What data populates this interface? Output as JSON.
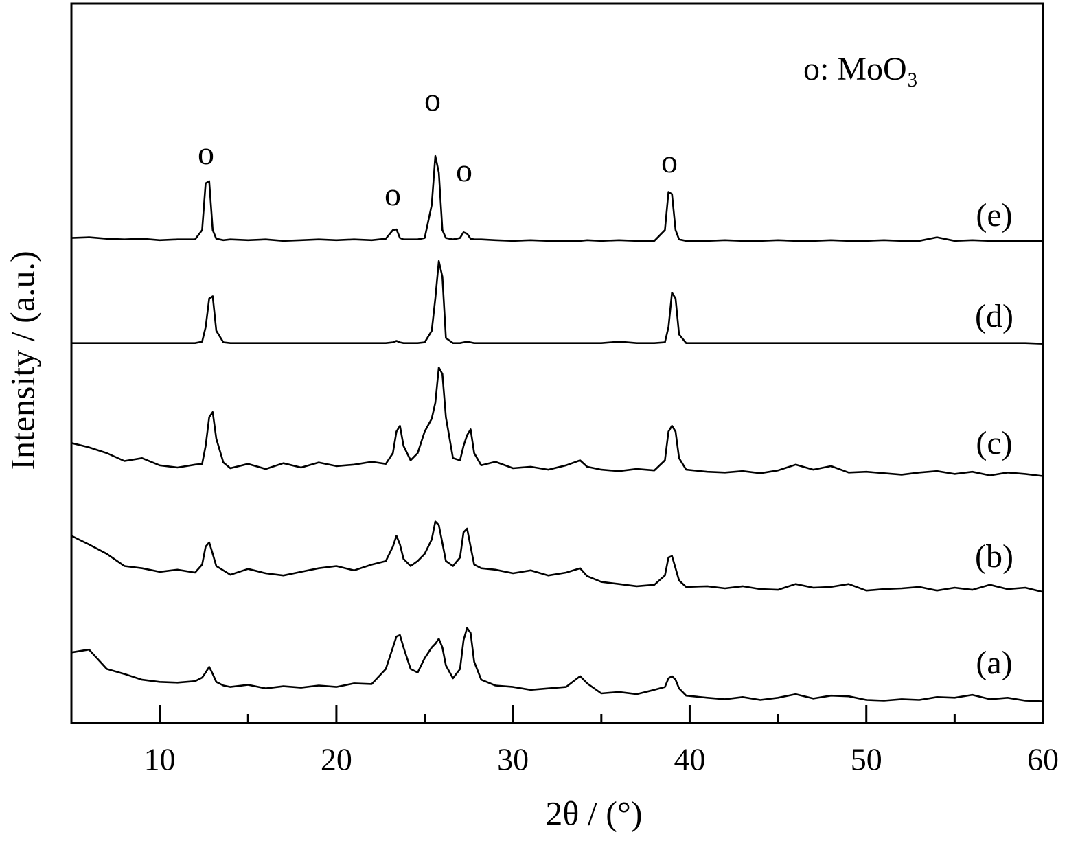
{
  "chart_data": {
    "type": "line",
    "xlabel": "2θ / (°)",
    "ylabel": "Intensity / (a.u.)",
    "legend_note": "o: MoO₃",
    "annotations": [
      "o",
      "o",
      "o",
      "o",
      "o"
    ],
    "xlim": [
      5,
      60
    ],
    "xticks": [
      10,
      20,
      30,
      40,
      50,
      60
    ],
    "xminorticks": [
      15,
      25,
      35,
      45,
      55
    ],
    "ylim": [
      0,
      100
    ],
    "x": [
      5,
      6,
      7,
      8,
      9,
      10,
      11,
      12,
      12.4,
      12.6,
      12.8,
      13.0,
      13.2,
      13.6,
      14,
      15,
      16,
      17,
      18,
      19,
      20,
      21,
      22,
      22.8,
      23.2,
      23.4,
      23.6,
      23.8,
      24.2,
      24.6,
      25,
      25.4,
      25.6,
      25.8,
      26,
      26.2,
      26.6,
      27,
      27.2,
      27.4,
      27.6,
      27.8,
      28.2,
      29,
      30,
      31,
      32,
      33,
      33.8,
      34.2,
      35,
      36,
      37,
      38,
      38.6,
      38.8,
      39,
      39.2,
      39.4,
      39.8,
      41,
      42,
      43,
      44,
      45,
      46,
      47,
      48,
      49,
      50,
      51,
      52,
      53,
      54,
      55,
      56,
      57,
      58,
      59,
      60
    ],
    "series": [
      {
        "name": "(e)",
        "color": "#000000",
        "values": [
          67.4,
          67.5,
          67.3,
          67.2,
          67.3,
          67.1,
          67.2,
          67.2,
          68.5,
          75.0,
          75.3,
          68.5,
          67.3,
          67.1,
          67.2,
          67.1,
          67.2,
          67.0,
          67.1,
          67.2,
          67.1,
          67.2,
          67.1,
          67.3,
          68.5,
          68.6,
          67.4,
          67.2,
          67.2,
          67.2,
          67.4,
          72.0,
          78.8,
          76.5,
          68.5,
          67.4,
          67.2,
          67.4,
          68.2,
          68.0,
          67.3,
          67.2,
          67.2,
          67.1,
          67.0,
          67.1,
          67.0,
          67.0,
          67.0,
          67.1,
          67.0,
          67.1,
          67.0,
          67.0,
          68.5,
          73.8,
          73.5,
          68.5,
          67.2,
          67.0,
          67.0,
          67.1,
          67.0,
          67.0,
          67.1,
          67.0,
          67.0,
          67.1,
          67.0,
          67.0,
          67.1,
          67.0,
          67.0,
          67.5,
          67.0,
          67.1,
          67.0,
          67.0,
          67.0,
          67.0
        ]
      },
      {
        "name": "(d)",
        "color": "#000000",
        "values": [
          52.8,
          52.8,
          52.8,
          52.8,
          52.8,
          52.8,
          52.8,
          52.8,
          53.0,
          55.0,
          59.0,
          59.3,
          54.5,
          52.9,
          52.8,
          52.8,
          52.8,
          52.8,
          52.8,
          52.8,
          52.8,
          52.8,
          52.8,
          52.8,
          52.9,
          53.1,
          52.9,
          52.8,
          52.8,
          52.8,
          52.9,
          54.5,
          59.0,
          64.2,
          62.0,
          53.5,
          52.8,
          52.8,
          52.9,
          53.0,
          52.9,
          52.8,
          52.8,
          52.8,
          52.8,
          52.8,
          52.8,
          52.8,
          52.8,
          52.8,
          52.8,
          53.0,
          52.8,
          52.8,
          52.9,
          55.0,
          59.8,
          59.0,
          54.0,
          52.8,
          52.8,
          52.8,
          52.8,
          52.8,
          52.8,
          52.8,
          52.8,
          52.8,
          52.8,
          52.8,
          52.8,
          52.8,
          52.8,
          52.8,
          52.8,
          52.8,
          52.8,
          52.8,
          52.8,
          52.7
        ]
      },
      {
        "name": "(c)",
        "color": "#000000",
        "values": [
          38.9,
          38.3,
          37.5,
          36.4,
          36.8,
          35.8,
          35.5,
          35.9,
          36.0,
          38.5,
          42.5,
          43.2,
          39.5,
          36.2,
          35.4,
          36.0,
          35.3,
          36.1,
          35.5,
          36.2,
          35.7,
          35.9,
          36.3,
          36.0,
          37.5,
          40.5,
          41.3,
          38.5,
          36.5,
          37.5,
          40.5,
          42.3,
          44.5,
          49.4,
          48.5,
          42.5,
          36.8,
          36.5,
          38.5,
          40.0,
          40.8,
          37.5,
          35.8,
          36.3,
          35.4,
          35.6,
          35.2,
          35.8,
          36.5,
          35.6,
          35.2,
          35.0,
          35.3,
          35.1,
          36.5,
          40.5,
          41.3,
          40.5,
          36.8,
          35.2,
          34.9,
          34.8,
          35.0,
          34.7,
          35.1,
          35.9,
          35.2,
          35.7,
          34.8,
          34.9,
          34.7,
          34.5,
          34.8,
          35.0,
          34.6,
          34.9,
          34.4,
          34.8,
          34.6,
          34.3
        ]
      },
      {
        "name": "(b)",
        "color": "#000000",
        "values": [
          26.0,
          24.8,
          23.5,
          21.8,
          21.5,
          21.0,
          21.3,
          20.9,
          22.0,
          24.5,
          25.1,
          23.5,
          21.8,
          21.2,
          20.6,
          21.4,
          20.8,
          20.5,
          21.0,
          21.5,
          21.8,
          21.2,
          22.0,
          22.5,
          24.5,
          26.0,
          24.8,
          22.8,
          21.8,
          22.5,
          23.5,
          25.5,
          28.0,
          27.5,
          25.0,
          22.5,
          21.8,
          23.0,
          26.5,
          27.0,
          24.5,
          22.0,
          21.5,
          21.3,
          20.8,
          21.2,
          20.5,
          20.9,
          21.5,
          20.4,
          19.6,
          19.3,
          19.0,
          19.2,
          20.5,
          23.0,
          23.2,
          21.5,
          19.8,
          18.9,
          19.0,
          18.7,
          19.0,
          18.6,
          18.5,
          19.3,
          18.8,
          18.9,
          19.3,
          18.4,
          18.6,
          18.7,
          18.9,
          18.4,
          18.8,
          18.5,
          19.2,
          18.6,
          18.8,
          18.2
        ]
      },
      {
        "name": "(a)",
        "color": "#000000",
        "values": [
          9.8,
          10.2,
          7.5,
          6.8,
          6.0,
          5.7,
          5.6,
          5.8,
          6.3,
          7.0,
          7.8,
          6.8,
          5.7,
          5.2,
          5.0,
          5.3,
          4.8,
          5.1,
          4.9,
          5.2,
          5.0,
          5.5,
          5.4,
          7.5,
          10.5,
          12.0,
          12.2,
          10.5,
          7.5,
          7.0,
          9.0,
          10.5,
          11.0,
          11.7,
          10.5,
          8.0,
          6.2,
          7.5,
          11.5,
          13.2,
          12.5,
          8.5,
          6.0,
          5.2,
          5.0,
          4.6,
          4.8,
          5.0,
          6.5,
          5.5,
          4.1,
          4.3,
          4.0,
          4.6,
          5.0,
          6.2,
          6.5,
          6.0,
          4.8,
          3.8,
          3.5,
          3.3,
          3.6,
          3.2,
          3.5,
          4.0,
          3.4,
          3.8,
          3.7,
          3.2,
          3.1,
          3.3,
          3.2,
          3.6,
          3.5,
          3.9,
          3.3,
          3.5,
          3.1,
          3.0
        ]
      }
    ]
  }
}
